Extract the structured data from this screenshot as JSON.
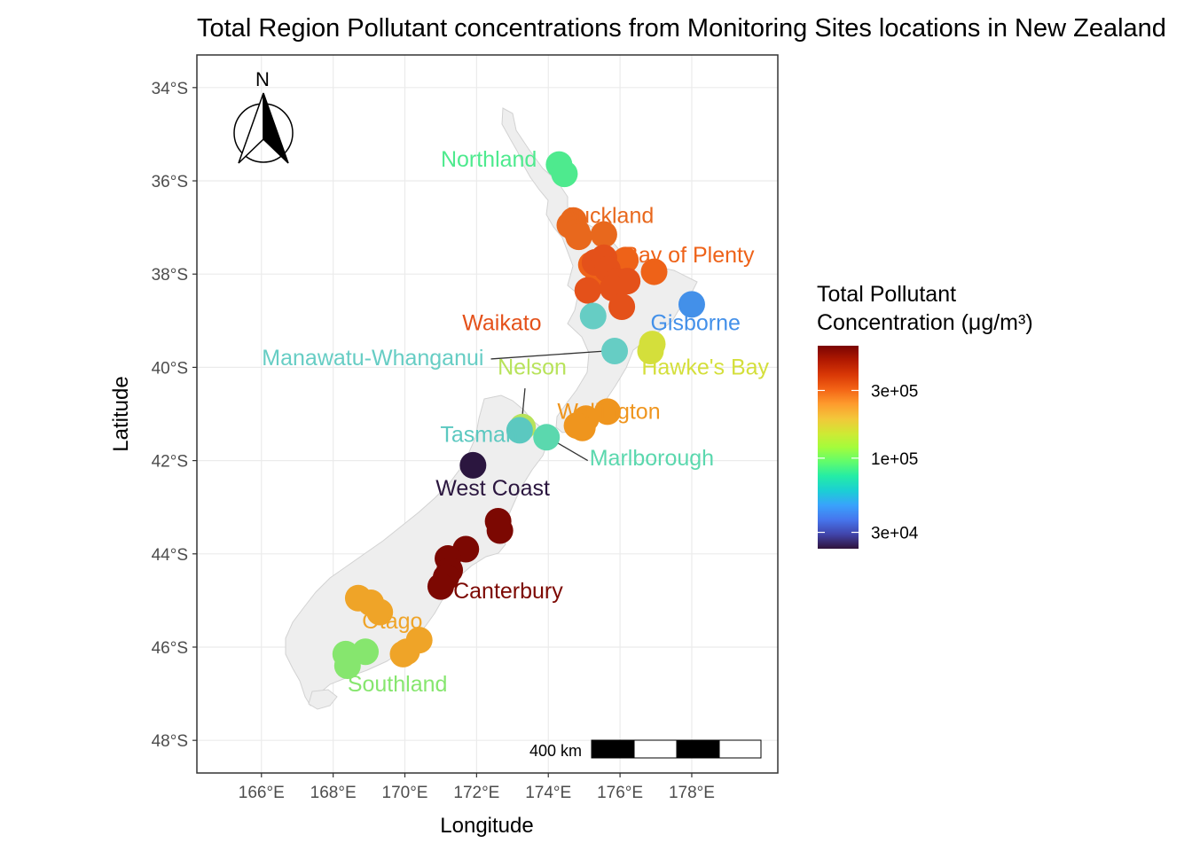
{
  "title": "Total Region Pollutant concentrations from Monitoring Sites locations in New Zealand",
  "chart_data": {
    "type": "scatter",
    "xlabel": "Longitude",
    "ylabel": "Latitude",
    "xlim": [
      164.2,
      180.4
    ],
    "ylim": [
      -48.7,
      -33.3
    ],
    "x_ticks": [
      166,
      168,
      170,
      172,
      174,
      176,
      178
    ],
    "x_tick_labels": [
      "166°E",
      "168°E",
      "170°E",
      "172°E",
      "174°E",
      "176°E",
      "178°E"
    ],
    "y_ticks": [
      -34,
      -36,
      -38,
      -40,
      -42,
      -44,
      -46,
      -48
    ],
    "y_tick_labels": [
      "34°S",
      "36°S",
      "38°S",
      "40°S",
      "42°S",
      "44°S",
      "46°S",
      "48°S"
    ],
    "grid": true,
    "colors": {
      "land": "#eeeeee",
      "land_stroke": "#d0d0d0",
      "grid": "#ebebeb",
      "panel_border": "#333333"
    },
    "legend": {
      "title_lines": [
        "Total Pollutant",
        "Concentration (μg/m³)"
      ],
      "placement": "right",
      "scale": "log",
      "range": [
        23000,
        620000
      ],
      "ticks": [
        30000,
        100000,
        300000
      ],
      "tick_labels": [
        "3e+04",
        "1e+05",
        "3e+05"
      ],
      "gradient": [
        "#30123b",
        "#4145ab",
        "#4675ed",
        "#39a2fc",
        "#1bcfd4",
        "#24eca6",
        "#61fc6c",
        "#a4fc3b",
        "#d1e834",
        "#f3c63a",
        "#fe9b2d",
        "#f36315",
        "#d93806",
        "#b11901",
        "#7a0402"
      ]
    },
    "scale_bar": {
      "label": "400 km",
      "segments": 4
    },
    "north_arrow": {
      "label": "N"
    },
    "regions": [
      {
        "name": "Northland",
        "label": "Northland",
        "color": "#4eea8e",
        "label_lon": 171.0,
        "label_lat": -35.7,
        "anchor": "start",
        "sites": [
          [
            174.3,
            -35.65
          ],
          [
            174.45,
            -35.85
          ]
        ]
      },
      {
        "name": "Auckland",
        "label": "Auckland",
        "color": "#e8681d",
        "label_lon": 174.4,
        "label_lat": -36.9,
        "anchor": "start",
        "sites": [
          [
            174.7,
            -36.85
          ],
          [
            174.6,
            -36.95
          ],
          [
            174.8,
            -37.1
          ],
          [
            174.85,
            -37.2
          ],
          [
            175.55,
            -37.15
          ]
        ]
      },
      {
        "name": "Bay of Plenty",
        "label": "Bay of Plenty",
        "color": "#ee6218",
        "label_lon": 176.1,
        "label_lat": -37.75,
        "anchor": "start",
        "sites": [
          [
            176.15,
            -37.7
          ],
          [
            176.95,
            -37.95
          ],
          [
            175.2,
            -37.8
          ],
          [
            175.4,
            -38.1
          ]
        ]
      },
      {
        "name": "Waikato",
        "label": "Waikato",
        "color": "#e4511a",
        "label_lon": 171.6,
        "label_lat": -39.2,
        "anchor": "start",
        "sites": [
          [
            175.3,
            -37.75
          ],
          [
            175.55,
            -37.65
          ],
          [
            175.65,
            -37.9
          ],
          [
            175.9,
            -38.15
          ],
          [
            176.2,
            -38.15
          ],
          [
            175.1,
            -38.35
          ],
          [
            175.8,
            -38.3
          ],
          [
            176.05,
            -38.7
          ]
        ]
      },
      {
        "name": "Gisborne",
        "label": "Gisborne",
        "color": "#4390e9",
        "label_lon": 176.85,
        "label_lat": -39.2,
        "anchor": "start",
        "sites": [
          [
            178.0,
            -38.65
          ]
        ]
      },
      {
        "name": "Manawatu-Whanganui",
        "label": "Manawatu-Whanganui",
        "color": "#66cdc4",
        "label_lon": 172.2,
        "label_lat": -39.95,
        "anchor": "end",
        "connector": [
          [
            172.4,
            -39.82
          ],
          [
            175.6,
            -39.65
          ]
        ],
        "sites": [
          [
            175.85,
            -39.65
          ],
          [
            175.25,
            -38.9
          ]
        ]
      },
      {
        "name": "Hawke's Bay",
        "label": "Hawke's Bay",
        "color": "#d4df3b",
        "label_lon": 176.6,
        "label_lat": -40.15,
        "anchor": "start",
        "sites": [
          [
            176.9,
            -39.5
          ],
          [
            176.85,
            -39.65
          ]
        ]
      },
      {
        "name": "Nelson",
        "label": "Nelson",
        "color": "#b8e35b",
        "label_lon": 173.55,
        "label_lat": -40.15,
        "anchor": "middle",
        "connector": [
          [
            173.35,
            -40.45
          ],
          [
            173.25,
            -41.25
          ]
        ],
        "sites": [
          [
            173.28,
            -41.28
          ]
        ]
      },
      {
        "name": "Wellington",
        "label": "Wellington",
        "color": "#ef951e",
        "label_lon": 174.25,
        "label_lat": -41.1,
        "anchor": "start",
        "sites": [
          [
            175.65,
            -40.95
          ],
          [
            175.05,
            -41.1
          ],
          [
            174.8,
            -41.25
          ],
          [
            174.95,
            -41.3
          ]
        ]
      },
      {
        "name": "Tasman",
        "label": "Tasman",
        "color": "#5bc8c0",
        "label_lon": 173.15,
        "label_lat": -41.6,
        "anchor": "end",
        "sites": [
          [
            173.2,
            -41.35
          ]
        ]
      },
      {
        "name": "Marlborough",
        "label": "Marlborough",
        "color": "#5bd8ae",
        "label_lon": 175.15,
        "label_lat": -42.1,
        "anchor": "start",
        "connector": [
          [
            174.1,
            -41.55
          ],
          [
            175.1,
            -42.0
          ]
        ],
        "sites": [
          [
            173.95,
            -41.5
          ]
        ]
      },
      {
        "name": "West Coast",
        "label": "West Coast",
        "color": "#2b163f",
        "label_lon": 172.45,
        "label_lat": -42.75,
        "anchor": "middle",
        "sites": [
          [
            171.9,
            -42.1
          ]
        ]
      },
      {
        "name": "Canterbury",
        "label": "Canterbury",
        "color": "#7c0802",
        "label_lon": 171.35,
        "label_lat": -44.95,
        "anchor": "start",
        "sites": [
          [
            172.6,
            -43.3
          ],
          [
            172.65,
            -43.5
          ],
          [
            171.7,
            -43.9
          ],
          [
            171.2,
            -44.1
          ],
          [
            171.25,
            -44.35
          ],
          [
            171.15,
            -44.5
          ],
          [
            171.0,
            -44.7
          ]
        ]
      },
      {
        "name": "Otago",
        "label": "Otago",
        "color": "#efa428",
        "label_lon": 169.65,
        "label_lat": -45.6,
        "anchor": "middle",
        "sites": [
          [
            168.7,
            -44.95
          ],
          [
            169.05,
            -45.05
          ],
          [
            169.3,
            -45.25
          ],
          [
            170.4,
            -45.85
          ],
          [
            170.05,
            -46.1
          ],
          [
            169.95,
            -46.15
          ]
        ]
      },
      {
        "name": "Southland",
        "label": "Southland",
        "color": "#86e66e",
        "label_lon": 168.4,
        "label_lat": -46.95,
        "anchor": "start",
        "sites": [
          [
            168.35,
            -46.15
          ],
          [
            168.9,
            -46.1
          ],
          [
            168.4,
            -46.4
          ]
        ]
      }
    ]
  }
}
